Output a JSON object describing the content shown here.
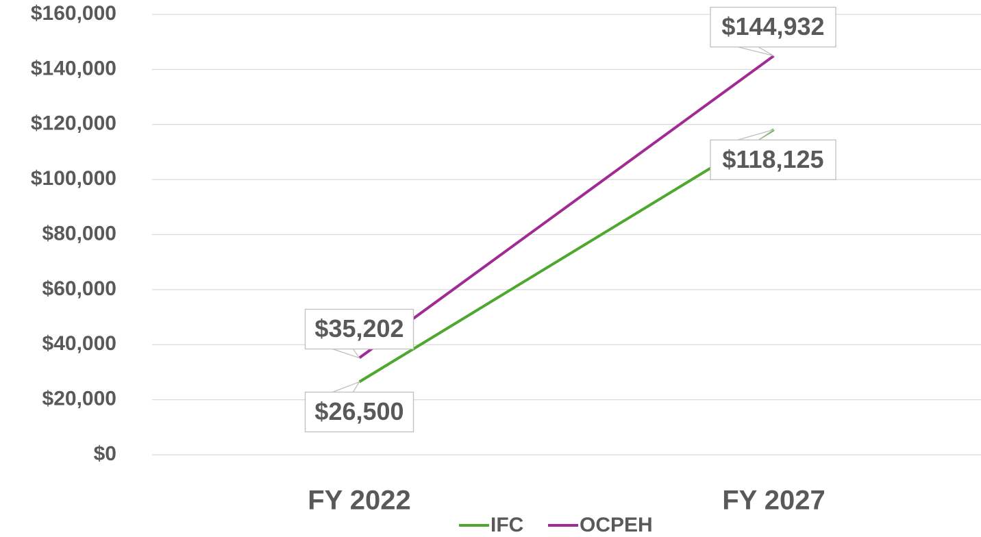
{
  "chart_data": {
    "type": "line",
    "categories": [
      "FY 2022",
      "FY 2027"
    ],
    "series": [
      {
        "name": "IFC",
        "color": "#4ea72e",
        "values": [
          26500,
          118125
        ],
        "value_labels": [
          "$26,500",
          "$118,125"
        ]
      },
      {
        "name": "OCPEH",
        "color": "#a02b93",
        "values": [
          35202,
          144932
        ],
        "value_labels": [
          "$35,202",
          "$144,932"
        ]
      }
    ],
    "ylim": [
      0,
      160000
    ],
    "yticks": [
      {
        "value": 0,
        "label": "$0"
      },
      {
        "value": 20000,
        "label": "$20,000"
      },
      {
        "value": 40000,
        "label": "$40,000"
      },
      {
        "value": 60000,
        "label": "$60,000"
      },
      {
        "value": 80000,
        "label": "$80,000"
      },
      {
        "value": 100000,
        "label": "$100,000"
      },
      {
        "value": 120000,
        "label": "$120,000"
      },
      {
        "value": 140000,
        "label": "$140,000"
      },
      {
        "value": 160000,
        "label": "$160,000"
      }
    ],
    "grid": true,
    "legend": "bottom"
  }
}
